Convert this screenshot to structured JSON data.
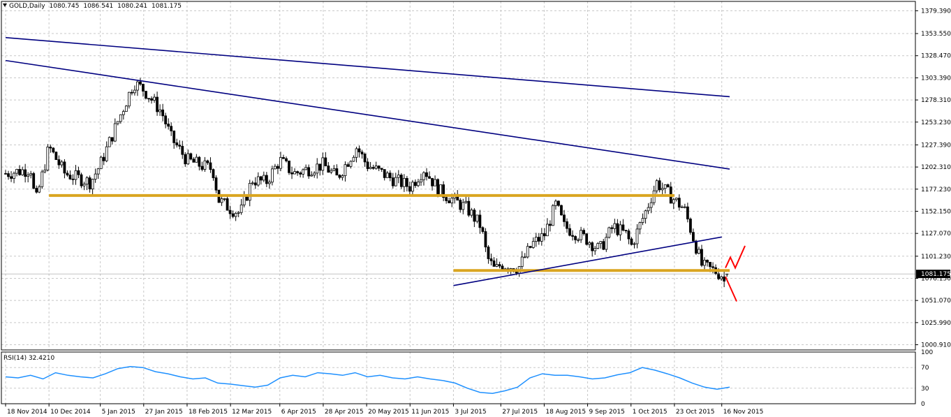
{
  "header": {
    "symbol": "GOLD,Daily",
    "open": "1080.745",
    "high": "1086.541",
    "low": "1080.241",
    "close": "1081.175"
  },
  "price_axis": {
    "labels": [
      "1379.390",
      "1353.550",
      "1328.470",
      "1303.390",
      "1278.310",
      "1253.230",
      "1227.390",
      "1202.310",
      "1177.230",
      "1152.150",
      "1127.070",
      "1101.230",
      "1076.150",
      "1051.070",
      "1025.990",
      "1000.910"
    ],
    "current_price": "1081.175"
  },
  "rsi": {
    "label": "RSI(14) 32.4210",
    "axis_labels": [
      "100",
      "70",
      "30",
      "0"
    ]
  },
  "date_axis": {
    "labels": [
      "18 Nov 2014",
      "10 Dec 2014",
      "5 Jan 2015",
      "27 Jan 2015",
      "18 Feb 2015",
      "12 Mar 2015",
      "6 Apr 2015",
      "28 Apr 2015",
      "20 May 2015",
      "11 Jun 2015",
      "3 Jul 2015",
      "27 Jul 2015",
      "18 Aug 2015",
      "9 Sep 2015",
      "1 Oct 2015",
      "23 Oct 2015",
      "16 Nov 2015"
    ]
  },
  "colors": {
    "candle": "#000000",
    "trendline": "#000080",
    "support": "#DAA520",
    "arrow": "#FF0000",
    "rsi_line": "#1E90FF"
  },
  "chart_data": {
    "type": "candlestick",
    "title": "GOLD,Daily",
    "x_start": "18 Nov 2014",
    "x_end": "20 Nov 2015",
    "ylim": [
      995,
      1390
    ],
    "close_path": [
      {
        "x": "18 Nov 2014",
        "y": 1195
      },
      {
        "x": "1 Dec 2014",
        "y": 1200
      },
      {
        "x": "3 Dec 2014",
        "y": 1160
      },
      {
        "x": "10 Dec 2014",
        "y": 1225
      },
      {
        "x": "18 Dec 2014",
        "y": 1195
      },
      {
        "x": "31 Dec 2014",
        "y": 1185
      },
      {
        "x": "5 Jan 2015",
        "y": 1205
      },
      {
        "x": "15 Jan 2015",
        "y": 1260
      },
      {
        "x": "22 Jan 2015",
        "y": 1298
      },
      {
        "x": "27 Jan 2015",
        "y": 1290
      },
      {
        "x": "5 Feb 2015",
        "y": 1265
      },
      {
        "x": "10 Feb 2015",
        "y": 1235
      },
      {
        "x": "18 Feb 2015",
        "y": 1210
      },
      {
        "x": "24 Feb 2015",
        "y": 1205
      },
      {
        "x": "3 Mar 2015",
        "y": 1200
      },
      {
        "x": "6 Mar 2015",
        "y": 1165
      },
      {
        "x": "12 Mar 2015",
        "y": 1155
      },
      {
        "x": "17 Mar 2015",
        "y": 1150
      },
      {
        "x": "23 Mar 2015",
        "y": 1188
      },
      {
        "x": "30 Mar 2015",
        "y": 1185
      },
      {
        "x": "6 Apr 2015",
        "y": 1210
      },
      {
        "x": "13 Apr 2015",
        "y": 1195
      },
      {
        "x": "28 Apr 2015",
        "y": 1205
      },
      {
        "x": "5 May 2015",
        "y": 1190
      },
      {
        "x": "15 May 2015",
        "y": 1225
      },
      {
        "x": "20 May 2015",
        "y": 1205
      },
      {
        "x": "1 Jun 2015",
        "y": 1190
      },
      {
        "x": "11 Jun 2015",
        "y": 1180
      },
      {
        "x": "18 Jun 2015",
        "y": 1200
      },
      {
        "x": "26 Jun 2015",
        "y": 1175
      },
      {
        "x": "3 Jul 2015",
        "y": 1165
      },
      {
        "x": "10 Jul 2015",
        "y": 1155
      },
      {
        "x": "17 Jul 2015",
        "y": 1135
      },
      {
        "x": "20 Jul 2015",
        "y": 1100
      },
      {
        "x": "24 Jul 2015",
        "y": 1085
      },
      {
        "x": "27 Jul 2015",
        "y": 1092
      },
      {
        "x": "5 Aug 2015",
        "y": 1088
      },
      {
        "x": "12 Aug 2015",
        "y": 1115
      },
      {
        "x": "18 Aug 2015",
        "y": 1125
      },
      {
        "x": "24 Aug 2015",
        "y": 1160
      },
      {
        "x": "28 Aug 2015",
        "y": 1135
      },
      {
        "x": "9 Sep 2015",
        "y": 1120
      },
      {
        "x": "15 Sep 2015",
        "y": 1108
      },
      {
        "x": "22 Sep 2015",
        "y": 1135
      },
      {
        "x": "29 Sep 2015",
        "y": 1125
      },
      {
        "x": "1 Oct 2015",
        "y": 1112
      },
      {
        "x": "9 Oct 2015",
        "y": 1155
      },
      {
        "x": "14 Oct 2015",
        "y": 1185
      },
      {
        "x": "23 Oct 2015",
        "y": 1165
      },
      {
        "x": "28 Oct 2015",
        "y": 1155
      },
      {
        "x": "3 Nov 2015",
        "y": 1112
      },
      {
        "x": "6 Nov 2015",
        "y": 1090
      },
      {
        "x": "12 Nov 2015",
        "y": 1085
      },
      {
        "x": "16 Nov 2015",
        "y": 1080
      },
      {
        "x": "18 Nov 2015",
        "y": 1068
      },
      {
        "x": "20 Nov 2015",
        "y": 1081
      }
    ],
    "support_levels": [
      {
        "y": 1170,
        "from": "10 Dec 2014",
        "to": "23 Oct 2015"
      },
      {
        "y": 1085,
        "from": "3 Jul 2015",
        "to": "20 Nov 2015"
      }
    ],
    "trendlines": [
      {
        "from": {
          "x": "18 Nov 2014",
          "y": 1349
        },
        "to": {
          "x": "20 Nov 2015",
          "y": 1282
        }
      },
      {
        "from": {
          "x": "18 Nov 2014",
          "y": 1323
        },
        "to": {
          "x": "20 Nov 2015",
          "y": 1200
        }
      },
      {
        "from": {
          "x": "3 Jul 2015",
          "y": 1068
        },
        "to": {
          "x": "16 Nov 2015",
          "y": 1123
        }
      }
    ],
    "rsi": {
      "period": 14,
      "last": 32.421,
      "ylim": [
        0,
        100
      ],
      "values": [
        52,
        50,
        55,
        48,
        60,
        55,
        52,
        50,
        58,
        68,
        72,
        70,
        62,
        58,
        52,
        48,
        50,
        40,
        38,
        35,
        32,
        36,
        50,
        55,
        52,
        60,
        58,
        55,
        60,
        52,
        55,
        50,
        48,
        52,
        48,
        45,
        40,
        30,
        22,
        20,
        25,
        32,
        50,
        58,
        55,
        55,
        52,
        48,
        50,
        56,
        60,
        70,
        65,
        58,
        50,
        40,
        32,
        28,
        32
      ]
    }
  }
}
